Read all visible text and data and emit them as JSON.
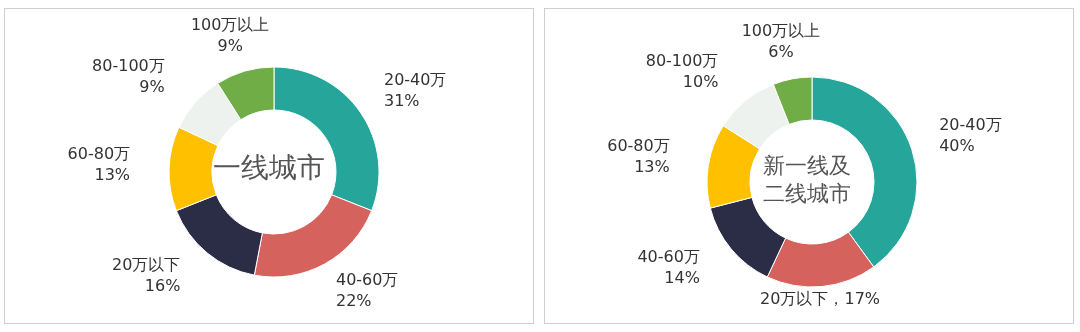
{
  "chart_data": [
    {
      "type": "donut",
      "title": "一线城市",
      "categories": [
        "20-40万",
        "40-60万",
        "20万以下",
        "60-80万",
        "80-100万",
        "100万以上"
      ],
      "values": [
        31,
        22,
        16,
        13,
        9,
        9
      ],
      "value_labels": [
        "31%",
        "22%",
        "16%",
        "13%",
        "9%",
        "9%"
      ],
      "colors": [
        "#26a69a",
        "#d6625e",
        "#2a2d45",
        "#ffc000",
        "#eef2ee",
        "#70ad47"
      ]
    },
    {
      "type": "donut",
      "title": "新一线及二线城市",
      "categories": [
        "20-40万",
        "20万以下",
        "40-60万",
        "60-80万",
        "80-100万",
        "100万以上"
      ],
      "values": [
        40,
        17,
        14,
        13,
        10,
        6
      ],
      "value_labels": [
        "40%",
        "，17%",
        "14%",
        "13%",
        "10%",
        "6%"
      ],
      "colors": [
        "#26a69a",
        "#d6625e",
        "#2a2d45",
        "#ffc000",
        "#eef2ee",
        "#70ad47"
      ]
    }
  ]
}
